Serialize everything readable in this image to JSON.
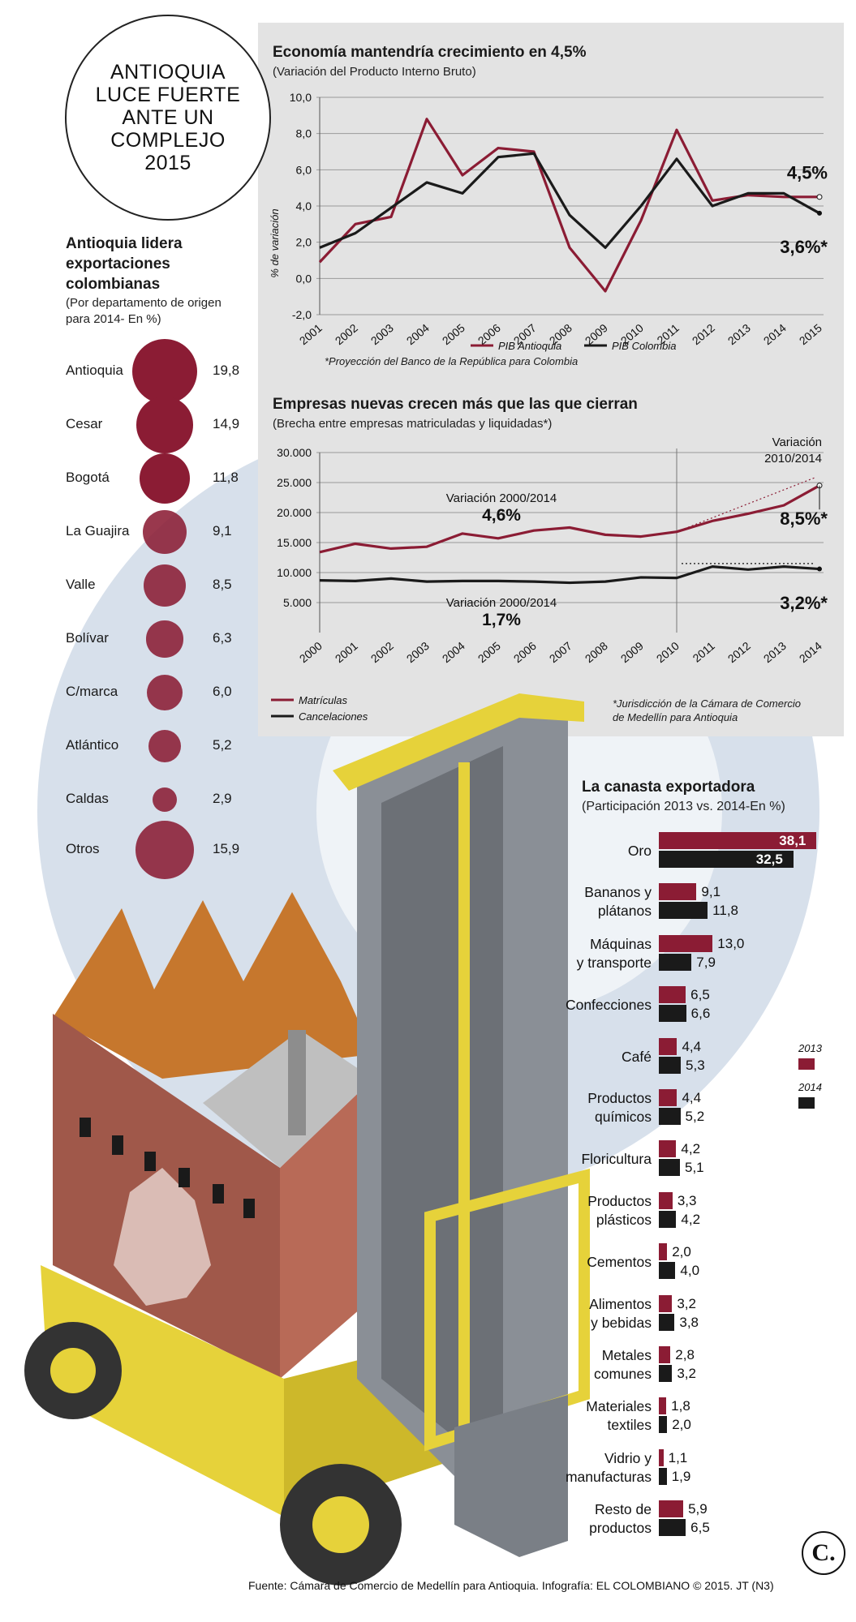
{
  "headline": "ANTIOQUIA LUCE FUERTE ANTE UN COMPLEJO 2015",
  "exports": {
    "title": "Antioquia lidera exportaciones colombianas",
    "subtitle": "(Por departamento de origen para 2014- En %)",
    "rows": [
      {
        "name": "Antioquia",
        "value": 19.8,
        "label": "19,8"
      },
      {
        "name": "Cesar",
        "value": 14.9,
        "label": "14,9"
      },
      {
        "name": "Bogotá",
        "value": 11.8,
        "label": "11,8"
      },
      {
        "name": "La Guajira",
        "value": 9.1,
        "label": "9,1"
      },
      {
        "name": "Valle",
        "value": 8.5,
        "label": "8,5"
      },
      {
        "name": "Bolívar",
        "value": 6.3,
        "label": "6,3"
      },
      {
        "name": "C/marca",
        "value": 6.0,
        "label": "6,0"
      },
      {
        "name": "Atlántico",
        "value": 5.2,
        "label": "5,2"
      },
      {
        "name": "Caldas",
        "value": 2.9,
        "label": "2,9"
      },
      {
        "name": "Otros",
        "value": 15.9,
        "label": "15,9"
      }
    ]
  },
  "colors": {
    "accent": "#8b1c34",
    "dark": "#1a1a1a",
    "panel": "#e3e3e3",
    "blue_deco": "#c9d6e4",
    "yellow": "#e6d23a"
  },
  "chart_data": [
    {
      "type": "line",
      "title": "Economía mantendría crecimiento en 4,5%",
      "subtitle": "(Variación del Producto Interno Bruto)",
      "ylabel": "% de variación",
      "ylim": [
        -2,
        10
      ],
      "yticks": [
        "10,0",
        "8,0",
        "6,0",
        "4,0",
        "2,0",
        "0,0",
        "-2,0"
      ],
      "x": [
        "2001",
        "2002",
        "2003",
        "2004",
        "2005",
        "2006",
        "2007",
        "2008",
        "2009",
        "2010",
        "2011",
        "2012",
        "2013",
        "2014",
        "2015"
      ],
      "series": [
        {
          "name": "PIB Antioquia",
          "color": "#8b1c34",
          "values": [
            0.9,
            3.0,
            3.4,
            8.8,
            5.7,
            7.2,
            7.0,
            1.7,
            -0.7,
            3.2,
            8.2,
            4.3,
            4.6,
            4.5,
            4.5
          ]
        },
        {
          "name": "PIB Colombia",
          "color": "#1a1a1a",
          "values": [
            1.7,
            2.5,
            3.9,
            5.3,
            4.7,
            6.7,
            6.9,
            3.5,
            1.7,
            4.0,
            6.6,
            4.0,
            4.7,
            4.7,
            3.6
          ]
        }
      ],
      "annotations": [
        "4,5%",
        "3,6%*"
      ],
      "footnote": "*Proyección del Banco de la República para Colombia"
    },
    {
      "type": "line",
      "title": "Empresas nuevas crecen más que las que cierran",
      "subtitle": "(Brecha entre empresas matriculadas y liquidadas*)",
      "ylim": [
        0,
        30000
      ],
      "yticks": [
        "30.000",
        "25.000",
        "20.000",
        "15.000",
        "10.000",
        "5.000"
      ],
      "x": [
        "2000",
        "2001",
        "2002",
        "2003",
        "2004",
        "2005",
        "2006",
        "2007",
        "2008",
        "2009",
        "2010",
        "2011",
        "2012",
        "2013",
        "2014"
      ],
      "series": [
        {
          "name": "Matrículas",
          "color": "#8b1c34",
          "values": [
            13400,
            14800,
            14000,
            14300,
            16500,
            15700,
            17000,
            17500,
            16300,
            16000,
            16800,
            18600,
            19800,
            21200,
            24500
          ]
        },
        {
          "name": "Cancelaciones",
          "color": "#1a1a1a",
          "values": [
            8700,
            8600,
            9000,
            8500,
            8600,
            8600,
            8500,
            8300,
            8500,
            9200,
            9100,
            11000,
            10500,
            11000,
            10600
          ]
        }
      ],
      "annotations": {
        "var_matr_label": "Variación 2000/2014",
        "var_matr_value": "4,6%",
        "var_canc_label": "Variación 2000/2014",
        "var_canc_value": "1,7%",
        "var_recent_label_1": "Variación",
        "var_recent_label_2": "2010/2014",
        "recent_matr": "8,5%*",
        "recent_canc": "3,2%*"
      },
      "footnote_1": "*Jurisdicción de la Cámara de Comercio",
      "footnote_2": "de Medellín para Antioquia"
    },
    {
      "type": "bar",
      "title": "La canasta exportadora",
      "subtitle": "(Participación 2013 vs. 2014-En %)",
      "legend": [
        "2013",
        "2014"
      ],
      "categories": [
        [
          "Oro"
        ],
        [
          "Bananos y",
          "plátanos"
        ],
        [
          "Máquinas",
          "y transporte"
        ],
        [
          "Confecciones"
        ],
        [
          "Café"
        ],
        [
          "Productos",
          "químicos"
        ],
        [
          "Floricultura"
        ],
        [
          "Productos",
          "plásticos"
        ],
        [
          "Cementos"
        ],
        [
          "Alimentos",
          "y bebidas"
        ],
        [
          "Metales",
          "comunes"
        ],
        [
          "Materiales",
          "textiles"
        ],
        [
          "Vidrio y",
          "manufacturas"
        ],
        [
          "Resto de",
          "productos"
        ]
      ],
      "series": [
        {
          "name": "2013",
          "color": "#8b1c34",
          "values": [
            38.1,
            9.1,
            13.0,
            6.5,
            4.4,
            4.4,
            4.2,
            3.3,
            2.0,
            3.2,
            2.8,
            1.8,
            1.1,
            5.9
          ],
          "labels": [
            "38,1",
            "9,1",
            "13,0",
            "6,5",
            "4,4",
            "4,4",
            "4,2",
            "3,3",
            "2,0",
            "3,2",
            "2,8",
            "1,8",
            "1,1",
            "5,9"
          ]
        },
        {
          "name": "2014",
          "color": "#1a1a1a",
          "values": [
            32.5,
            11.8,
            7.9,
            6.6,
            5.3,
            5.2,
            5.1,
            4.2,
            4.0,
            3.8,
            3.2,
            2.0,
            1.9,
            6.5
          ],
          "labels": [
            "32,5",
            "11,8",
            "7,9",
            "6,6",
            "5,3",
            "5,2",
            "5,1",
            "4,2",
            "4,0",
            "3,8",
            "3,2",
            "2,0",
            "1,9",
            "6,5"
          ]
        }
      ]
    }
  ],
  "source": "Fuente: Cámara de Comercio de Medellín para Antioquia. Infografía: EL COLOMBIANO © 2015. JT (N3)",
  "logo": "C."
}
